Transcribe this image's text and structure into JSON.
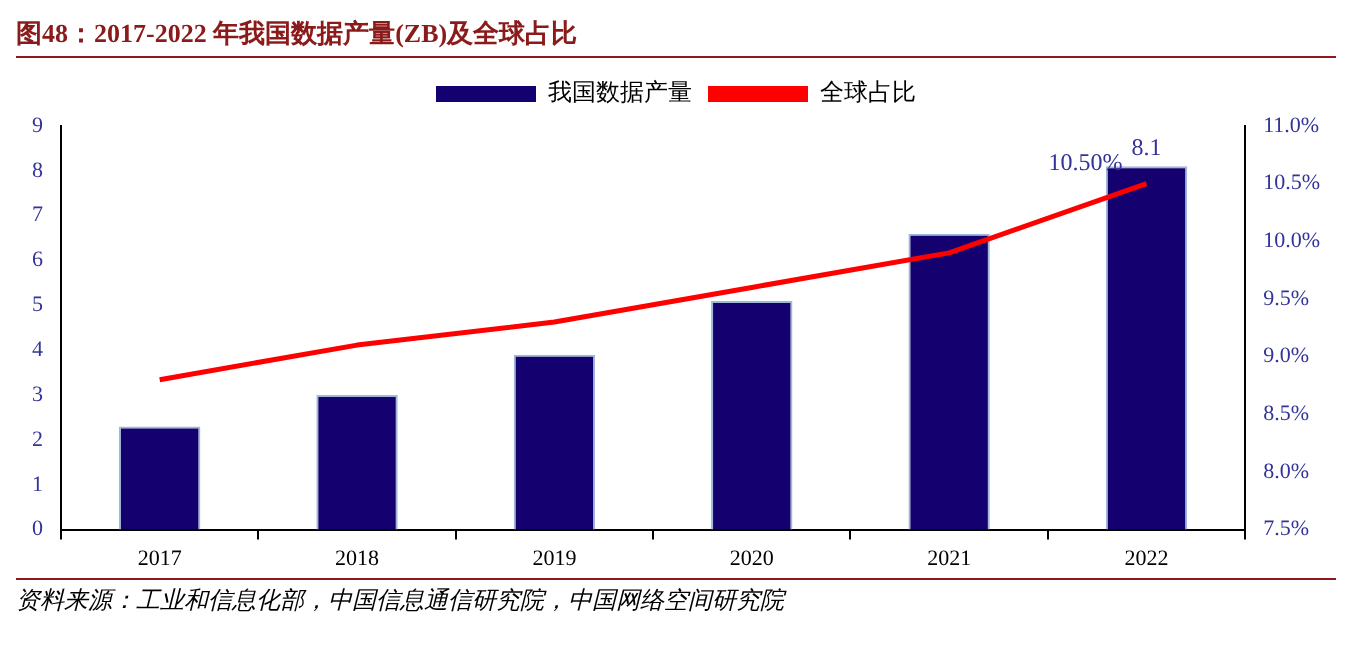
{
  "chart_data": {
    "type": "bar",
    "title": "图48：2017-2022 年我国数据产量(ZB)及全球占比",
    "categories": [
      "2017",
      "2018",
      "2019",
      "2020",
      "2021",
      "2022"
    ],
    "series": [
      {
        "name": "我国数据产量",
        "color": "#14006e",
        "values": [
          2.3,
          3.0,
          3.9,
          5.1,
          6.6,
          8.1
        ],
        "value_labels": [
          null,
          null,
          null,
          null,
          null,
          "8.1"
        ]
      },
      {
        "name": "全球占比",
        "type": "line",
        "axis": "y2",
        "color": "#ff0000",
        "values": [
          8.8,
          9.1,
          9.3,
          9.6,
          9.9,
          10.5
        ],
        "value_labels": [
          null,
          null,
          null,
          null,
          null,
          "10.50%"
        ],
        "marker": "none"
      }
    ],
    "ylim": [
      0,
      9
    ],
    "yticks": [
      0,
      1,
      2,
      3,
      4,
      5,
      6,
      7,
      8,
      9
    ],
    "y2lim": [
      7.5,
      11
    ],
    "y2ticks": [
      {
        "value": 7.5,
        "label": "7.5%"
      },
      {
        "value": 8,
        "label": "8.0%"
      },
      {
        "value": 8.5,
        "label": "8.5%"
      },
      {
        "value": 9,
        "label": "9.0%"
      },
      {
        "value": 9.5,
        "label": "9.5%"
      },
      {
        "value": 10,
        "label": "10.0%"
      },
      {
        "value": 10.5,
        "label": "10.5%"
      },
      {
        "value": 11,
        "label": "11.0%"
      }
    ],
    "legend": "top",
    "grid": false,
    "annotations": [
      "资料来源：工业和信息化部，中国信息通信研究院，中国网络空间研究院"
    ]
  }
}
